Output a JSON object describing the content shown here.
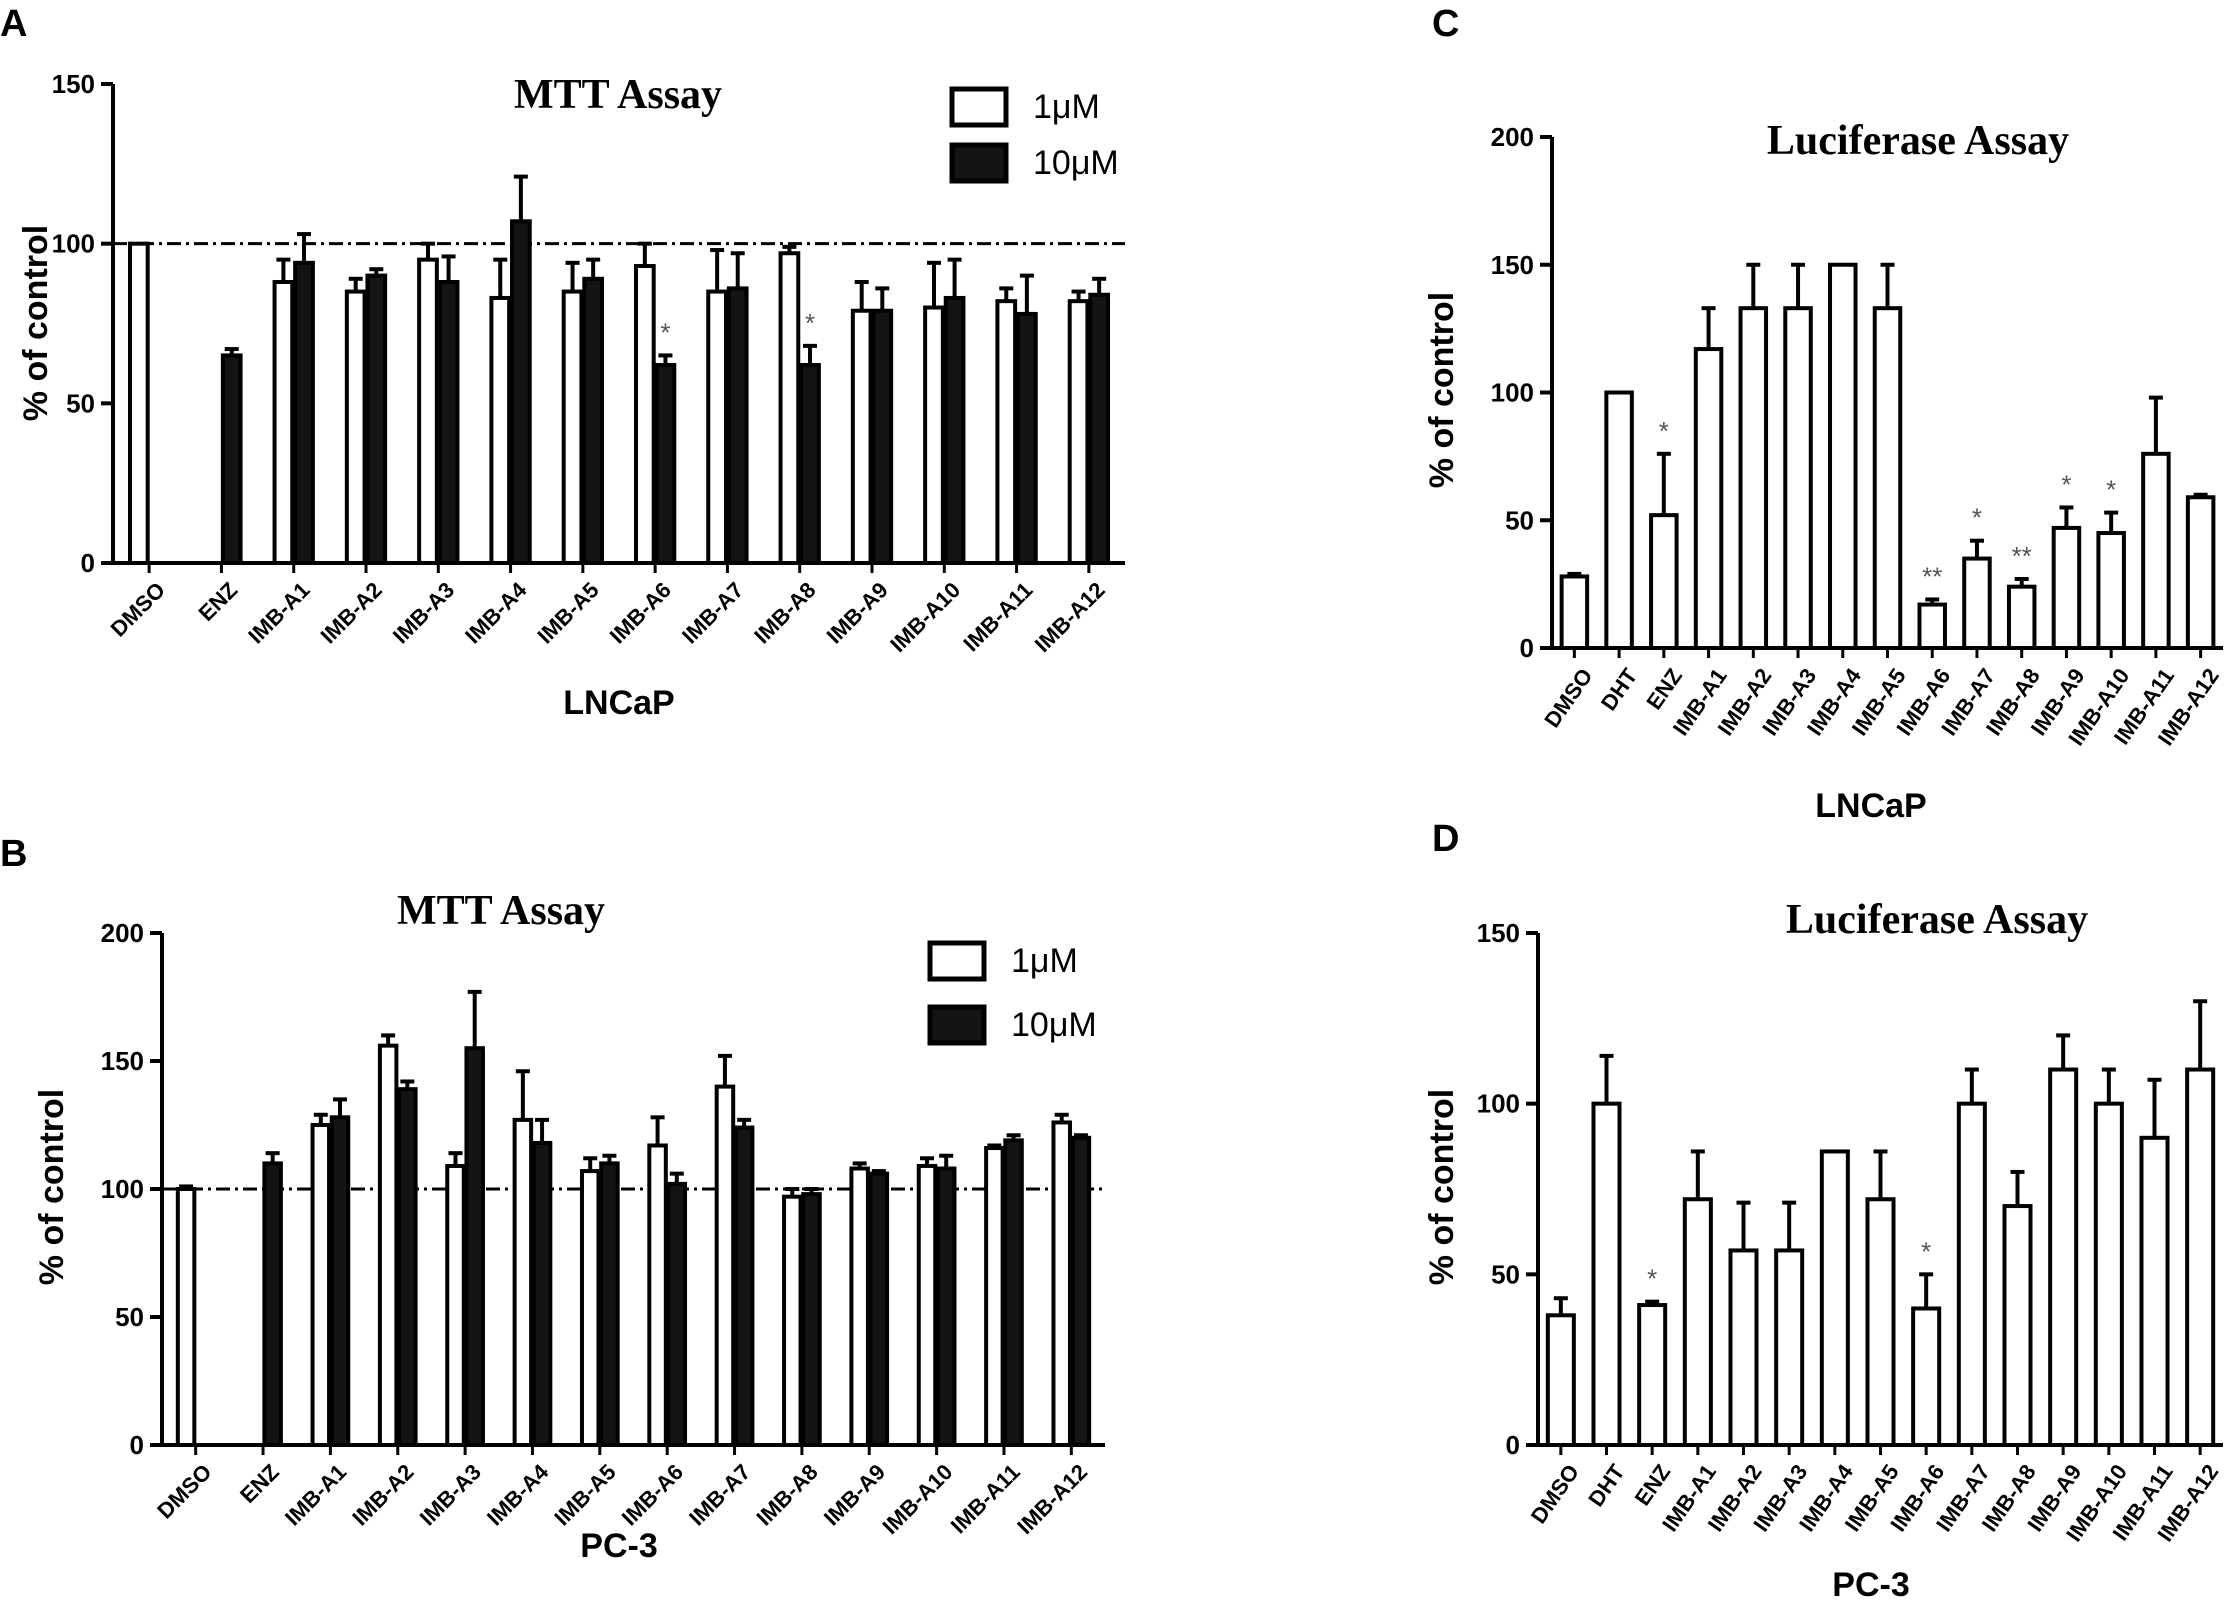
{
  "colors": {
    "ink": "#000000",
    "paper": "#ffffff",
    "sig": "#555555",
    "dark_fill": "#141414"
  },
  "chart_data": [
    {
      "panel": "A",
      "type": "bar",
      "title": "MTT Assay",
      "xlabel": "LNCaP",
      "ylabel": "% of control",
      "ylim": [
        0,
        150
      ],
      "yticks": [
        0,
        50,
        100,
        150
      ],
      "reference_line": 100,
      "legend": [
        "1μM",
        "10μM"
      ],
      "legend_position": "top-right",
      "categories": [
        "DMSO",
        "ENZ",
        "IMB-A1",
        "IMB-A2",
        "IMB-A3",
        "IMB-A4",
        "IMB-A5",
        "IMB-A6",
        "IMB-A7",
        "IMB-A8",
        "IMB-A9",
        "IMB-A10",
        "IMB-A11",
        "IMB-A12"
      ],
      "series": [
        {
          "name": "1μM",
          "fill": "white",
          "values": [
            100,
            null,
            88,
            85,
            95,
            83,
            85,
            93,
            85,
            97,
            79,
            80,
            82,
            82
          ],
          "errors": [
            0,
            null,
            7,
            4,
            5,
            12,
            9,
            7,
            13,
            2,
            9,
            14,
            4,
            3
          ],
          "sig": [
            "",
            "",
            "",
            "",
            "",
            "",
            "",
            "",
            "",
            "",
            "",
            "",
            "",
            ""
          ]
        },
        {
          "name": "10μM",
          "fill": "black",
          "values": [
            null,
            65,
            94,
            90,
            88,
            107,
            89,
            62,
            86,
            62,
            79,
            83,
            78,
            84
          ],
          "errors": [
            null,
            2,
            9,
            2,
            8,
            14,
            6,
            3,
            11,
            6,
            7,
            12,
            12,
            5
          ],
          "sig": [
            "",
            "",
            "",
            "",
            "",
            "",
            "",
            "*",
            "",
            "*",
            "",
            "",
            "",
            ""
          ]
        }
      ]
    },
    {
      "panel": "B",
      "type": "bar",
      "title": "MTT Assay",
      "xlabel": "PC-3",
      "ylabel": "% of control",
      "ylim": [
        0,
        200
      ],
      "yticks": [
        0,
        50,
        100,
        150,
        200
      ],
      "reference_line": 100,
      "legend": [
        "1μM",
        "10μM"
      ],
      "legend_position": "top-right",
      "categories": [
        "DMSO",
        "ENZ",
        "IMB-A1",
        "IMB-A2",
        "IMB-A3",
        "IMB-A4",
        "IMB-A5",
        "IMB-A6",
        "IMB-A7",
        "IMB-A8",
        "IMB-A9",
        "IMB-A10",
        "IMB-A11",
        "IMB-A12"
      ],
      "series": [
        {
          "name": "1μM",
          "fill": "white",
          "values": [
            100,
            null,
            125,
            156,
            109,
            127,
            107,
            117,
            140,
            97,
            108,
            109,
            116,
            126
          ],
          "errors": [
            1,
            null,
            4,
            4,
            5,
            19,
            5,
            11,
            12,
            3,
            2,
            3,
            1,
            3
          ],
          "sig": [
            "",
            "",
            "",
            "",
            "",
            "",
            "",
            "",
            "",
            "",
            "",
            "",
            "",
            ""
          ]
        },
        {
          "name": "10μM",
          "fill": "black",
          "values": [
            null,
            110,
            128,
            139,
            155,
            118,
            110,
            102,
            124,
            98,
            106,
            108,
            119,
            120
          ],
          "errors": [
            null,
            4,
            7,
            3,
            22,
            9,
            3,
            4,
            3,
            2,
            1,
            5,
            2,
            1
          ],
          "sig": [
            "",
            "",
            "",
            "",
            "",
            "",
            "",
            "",
            "",
            "",
            "",
            "",
            "",
            ""
          ]
        }
      ]
    },
    {
      "panel": "C",
      "type": "bar",
      "title": "Luciferase Assay",
      "xlabel": "LNCaP",
      "ylabel": "% of control",
      "ylim": [
        0,
        200
      ],
      "yticks": [
        0,
        50,
        100,
        150,
        200
      ],
      "categories": [
        "DMSO",
        "DHT",
        "ENZ",
        "IMB-A1",
        "IMB-A2",
        "IMB-A3",
        "IMB-A4",
        "IMB-A5",
        "IMB-A6",
        "IMB-A7",
        "IMB-A8",
        "IMB-A9",
        "IMB-A10",
        "IMB-A11",
        "IMB-A12"
      ],
      "series": [
        {
          "name": "value",
          "fill": "white",
          "values": [
            28,
            100,
            52,
            117,
            133,
            133,
            150,
            133,
            17,
            35,
            24,
            47,
            45,
            76,
            59
          ],
          "errors": [
            1,
            0,
            24,
            16,
            17,
            17,
            0,
            17,
            2,
            7,
            3,
            8,
            8,
            22,
            1
          ],
          "sig": [
            "",
            "",
            "*",
            "",
            "",
            "",
            "",
            "",
            "**",
            "*",
            "**",
            "*",
            "*",
            "",
            ""
          ]
        }
      ]
    },
    {
      "panel": "D",
      "type": "bar",
      "title": "Luciferase Assay",
      "xlabel": "PC-3",
      "ylabel": "% of control",
      "ylim": [
        0,
        150
      ],
      "yticks": [
        0,
        50,
        100,
        150
      ],
      "categories": [
        "DMSO",
        "DHT",
        "ENZ",
        "IMB-A1",
        "IMB-A2",
        "IMB-A3",
        "IMB-A4",
        "IMB-A5",
        "IMB-A6",
        "IMB-A7",
        "IMB-A8",
        "IMB-A9",
        "IMB-A10",
        "IMB-A11",
        "IMB-A12"
      ],
      "series": [
        {
          "name": "value",
          "fill": "white",
          "values": [
            38,
            100,
            41,
            72,
            57,
            57,
            86,
            72,
            40,
            100,
            70,
            110,
            100,
            90,
            110
          ],
          "errors": [
            5,
            14,
            1,
            14,
            14,
            14,
            0,
            14,
            10,
            10,
            10,
            10,
            10,
            17,
            20
          ],
          "sig": [
            "",
            "",
            "*",
            "",
            "",
            "",
            "",
            "",
            "*",
            "",
            "",
            "",
            "",
            "",
            ""
          ]
        }
      ]
    }
  ]
}
